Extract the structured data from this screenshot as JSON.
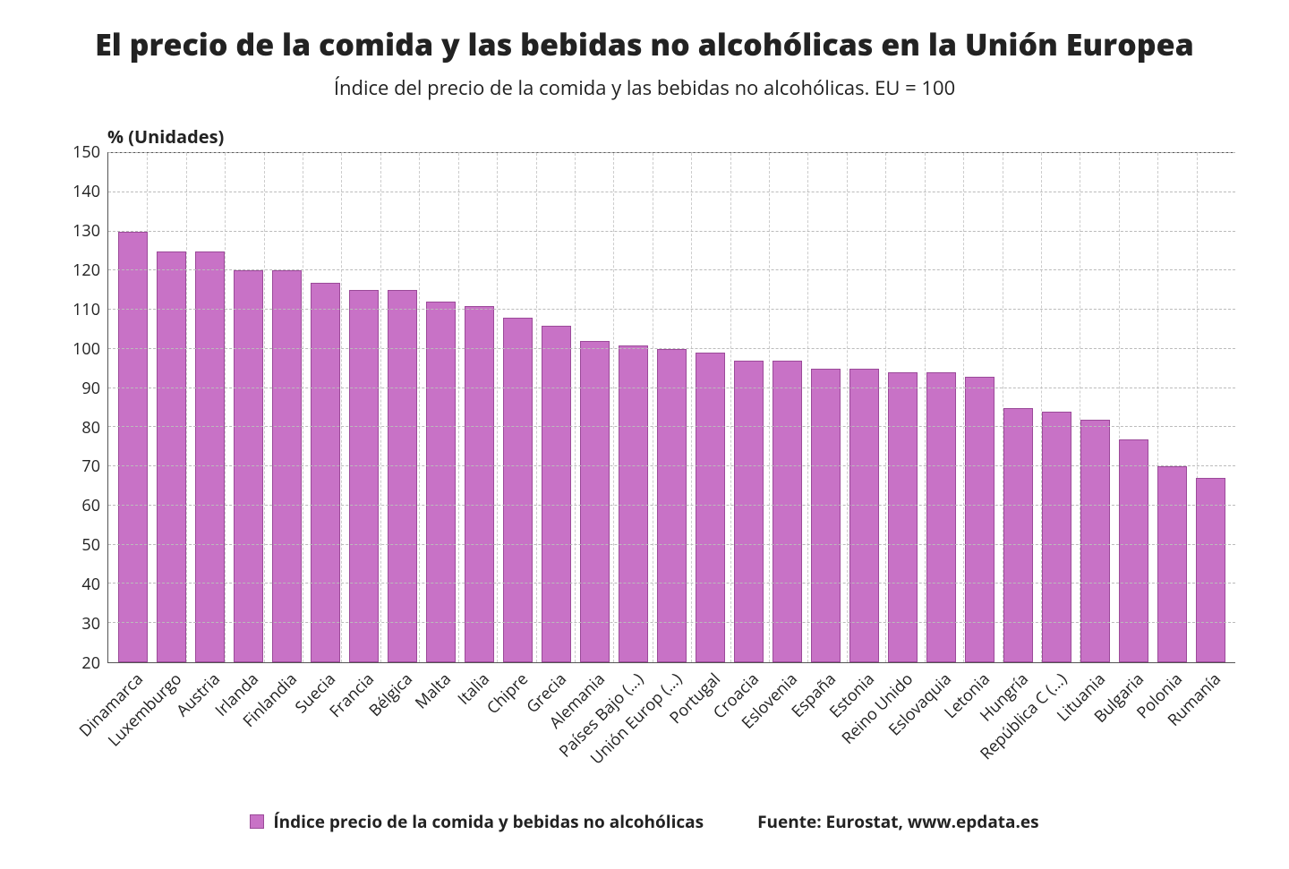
{
  "chart": {
    "type": "bar",
    "title": "El precio de la comida y las bebidas no alcohólicas en la Unión Europea",
    "title_fontsize": 34,
    "subtitle": "Índice del precio de la comida y las bebidas no alcohólicas. EU = 100",
    "subtitle_fontsize": 22,
    "y_axis_title": "% (Unidades)",
    "y_axis_title_fontsize": 20,
    "ylim": [
      20,
      150
    ],
    "ytick_step": 10,
    "yticks": [
      20,
      30,
      40,
      50,
      60,
      70,
      80,
      90,
      100,
      110,
      120,
      130,
      140,
      150
    ],
    "bar_color": "#c872c6",
    "bar_border_color": "#9b4a99",
    "background_color": "#ffffff",
    "grid_color": "#bbbbbb",
    "axis_color": "#555555",
    "label_fontsize": 18,
    "tick_fontsize": 18,
    "bar_width": 0.78,
    "categories": [
      "Dinamarca",
      "Luxemburgo",
      "Austria",
      "Irlanda",
      "Finlandia",
      "Suecia",
      "Francia",
      "Bélgica",
      "Malta",
      "Italia",
      "Chipre",
      "Grecia",
      "Alemania",
      "Países Bajo (...)",
      "Unión Europ (...)",
      "Portugal",
      "Croacia",
      "Eslovenia",
      "España",
      "Estonia",
      "Reino Unido",
      "Eslovaquia",
      "Letonia",
      "Hungría",
      "República C (...)",
      "Lituania",
      "Bulgaria",
      "Polonia",
      "Rumanía"
    ],
    "values": [
      130,
      125,
      125,
      120,
      120,
      117,
      115,
      115,
      112,
      111,
      108,
      106,
      102,
      101,
      100,
      99,
      97,
      97,
      95,
      95,
      94,
      94,
      93,
      85,
      84,
      82,
      77,
      70,
      67
    ],
    "legend_label": "Índice precio de la comida y bebidas no alcohólicas",
    "source_label": "Fuente: Eurostat, www.epdata.es",
    "footer_fontsize": 19
  }
}
